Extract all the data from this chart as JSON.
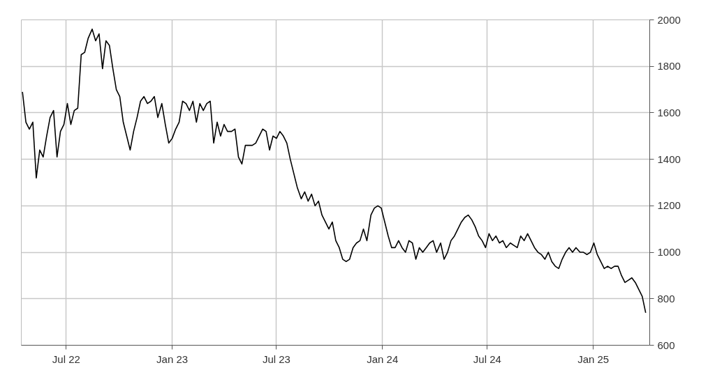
{
  "chart_data": {
    "type": "line",
    "x": [
      "2022-04-16",
      "2022-04-22",
      "2022-04-28",
      "2022-05-04",
      "2022-05-10",
      "2022-05-16",
      "2022-05-22",
      "2022-05-28",
      "2022-06-03",
      "2022-06-09",
      "2022-06-15",
      "2022-06-21",
      "2022-06-27",
      "2022-07-03",
      "2022-07-09",
      "2022-07-15",
      "2022-07-21",
      "2022-07-27",
      "2022-08-02",
      "2022-08-08",
      "2022-08-15",
      "2022-08-21",
      "2022-08-27",
      "2022-09-02",
      "2022-09-08",
      "2022-09-14",
      "2022-09-20",
      "2022-09-26",
      "2022-10-02",
      "2022-10-08",
      "2022-10-14",
      "2022-10-20",
      "2022-10-26",
      "2022-11-01",
      "2022-11-07",
      "2022-11-13",
      "2022-11-19",
      "2022-11-25",
      "2022-12-01",
      "2022-12-07",
      "2022-12-14",
      "2022-12-20",
      "2022-12-26",
      "2023-01-01",
      "2023-01-07",
      "2023-01-13",
      "2023-01-19",
      "2023-01-25",
      "2023-01-31",
      "2023-02-06",
      "2023-02-12",
      "2023-02-18",
      "2023-02-24",
      "2023-03-02",
      "2023-03-08",
      "2023-03-14",
      "2023-03-20",
      "2023-03-26",
      "2023-04-01",
      "2023-04-07",
      "2023-04-14",
      "2023-04-20",
      "2023-04-26",
      "2023-05-02",
      "2023-05-08",
      "2023-05-14",
      "2023-05-20",
      "2023-05-26",
      "2023-06-01",
      "2023-06-07",
      "2023-06-13",
      "2023-06-19",
      "2023-06-25",
      "2023-07-01",
      "2023-07-07",
      "2023-07-13",
      "2023-07-19",
      "2023-07-25",
      "2023-07-31",
      "2023-08-06",
      "2023-08-13",
      "2023-08-19",
      "2023-08-25",
      "2023-08-31",
      "2023-09-06",
      "2023-09-12",
      "2023-09-18",
      "2023-09-24",
      "2023-09-30",
      "2023-10-06",
      "2023-10-12",
      "2023-10-18",
      "2023-10-24",
      "2023-10-30",
      "2023-11-05",
      "2023-11-11",
      "2023-11-17",
      "2023-11-23",
      "2023-11-29",
      "2023-12-05",
      "2023-12-12",
      "2023-12-18",
      "2023-12-24",
      "2023-12-30",
      "2024-01-05",
      "2024-01-11",
      "2024-01-17",
      "2024-01-23",
      "2024-01-29",
      "2024-02-04",
      "2024-02-10",
      "2024-02-16",
      "2024-02-22",
      "2024-02-28",
      "2024-03-05",
      "2024-03-11",
      "2024-03-17",
      "2024-03-23",
      "2024-03-29",
      "2024-04-04",
      "2024-04-11",
      "2024-04-17",
      "2024-04-23",
      "2024-04-29",
      "2024-05-05",
      "2024-05-11",
      "2024-05-17",
      "2024-05-23",
      "2024-05-29",
      "2024-06-04",
      "2024-06-10",
      "2024-06-16",
      "2024-06-22",
      "2024-06-28",
      "2024-07-04",
      "2024-07-10",
      "2024-07-16",
      "2024-07-22",
      "2024-07-28",
      "2024-08-03",
      "2024-08-10",
      "2024-08-16",
      "2024-08-22",
      "2024-08-28",
      "2024-09-03",
      "2024-09-09",
      "2024-09-15",
      "2024-09-21",
      "2024-09-27",
      "2024-10-03",
      "2024-10-09",
      "2024-10-15",
      "2024-10-21",
      "2024-10-27",
      "2024-11-02",
      "2024-11-08",
      "2024-11-14",
      "2024-11-20",
      "2024-11-26",
      "2024-12-02",
      "2024-12-09",
      "2024-12-15",
      "2024-12-21",
      "2024-12-27",
      "2025-01-02",
      "2025-01-08",
      "2025-01-14",
      "2025-01-20",
      "2025-01-26",
      "2025-02-01",
      "2025-02-07",
      "2025-02-13",
      "2025-02-19",
      "2025-02-25",
      "2025-03-03",
      "2025-03-09",
      "2025-03-15",
      "2025-03-21",
      "2025-03-27",
      "2025-04-02"
    ],
    "series": [
      {
        "color": "#000000",
        "values": [
          1690,
          1560,
          1530,
          1560,
          1320,
          1440,
          1410,
          1500,
          1580,
          1610,
          1410,
          1520,
          1550,
          1640,
          1550,
          1610,
          1620,
          1850,
          1860,
          1920,
          1960,
          1910,
          1940,
          1790,
          1910,
          1890,
          1790,
          1700,
          1670,
          1560,
          1500,
          1440,
          1520,
          1580,
          1650,
          1670,
          1640,
          1650,
          1670,
          1580,
          1640,
          1550,
          1470,
          1490,
          1530,
          1560,
          1650,
          1640,
          1610,
          1650,
          1560,
          1640,
          1610,
          1640,
          1650,
          1470,
          1560,
          1500,
          1550,
          1520,
          1520,
          1530,
          1410,
          1380,
          1460,
          1460,
          1460,
          1470,
          1500,
          1530,
          1520,
          1440,
          1500,
          1490,
          1520,
          1500,
          1470,
          1400,
          1340,
          1280,
          1230,
          1260,
          1220,
          1250,
          1200,
          1220,
          1160,
          1130,
          1100,
          1130,
          1050,
          1020,
          970,
          960,
          970,
          1020,
          1040,
          1050,
          1100,
          1050,
          1160,
          1190,
          1200,
          1190,
          1130,
          1070,
          1020,
          1020,
          1050,
          1020,
          1000,
          1050,
          1040,
          970,
          1020,
          1000,
          1020,
          1040,
          1050,
          1000,
          1040,
          970,
          1000,
          1050,
          1070,
          1100,
          1130,
          1150,
          1160,
          1140,
          1110,
          1070,
          1050,
          1020,
          1080,
          1050,
          1070,
          1040,
          1050,
          1020,
          1040,
          1030,
          1020,
          1070,
          1050,
          1080,
          1050,
          1020,
          1000,
          990,
          970,
          1000,
          960,
          940,
          930,
          970,
          1000,
          1020,
          1000,
          1020,
          1000,
          1000,
          990,
          1000,
          1040,
          990,
          960,
          930,
          940,
          930,
          940,
          940,
          900,
          870,
          880,
          890,
          870,
          840,
          810,
          740
        ]
      }
    ],
    "xlim": [
      "2022-04-14",
      "2025-04-09"
    ],
    "xticks": [
      {
        "value": "2022-07-01",
        "label": "Jul 22"
      },
      {
        "value": "2023-01-01",
        "label": "Jan 23"
      },
      {
        "value": "2023-07-01",
        "label": "Jul 23"
      },
      {
        "value": "2024-01-01",
        "label": "Jan 24"
      },
      {
        "value": "2024-07-01",
        "label": "Jul 24"
      },
      {
        "value": "2025-01-01",
        "label": "Jan 25"
      }
    ],
    "ylim": [
      600,
      2000
    ],
    "yticks": [
      600,
      800,
      1000,
      1200,
      1400,
      1600,
      1800,
      2000
    ],
    "grid": true,
    "line_style": "solid",
    "marker": "none"
  }
}
